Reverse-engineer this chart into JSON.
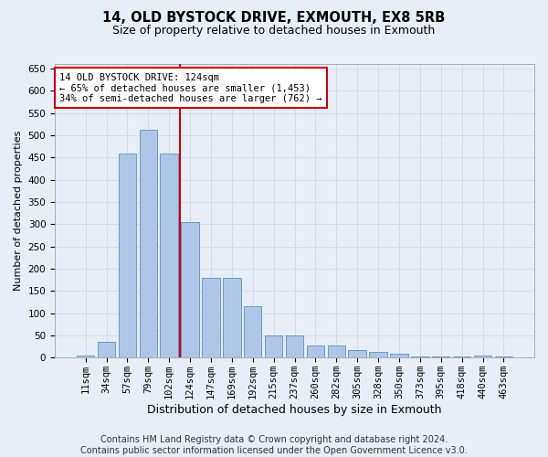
{
  "title_line1": "14, OLD BYSTOCK DRIVE, EXMOUTH, EX8 5RB",
  "title_line2": "Size of property relative to detached houses in Exmouth",
  "xlabel": "Distribution of detached houses by size in Exmouth",
  "ylabel": "Number of detached properties",
  "categories": [
    "11sqm",
    "34sqm",
    "57sqm",
    "79sqm",
    "102sqm",
    "124sqm",
    "147sqm",
    "169sqm",
    "192sqm",
    "215sqm",
    "237sqm",
    "260sqm",
    "282sqm",
    "305sqm",
    "328sqm",
    "350sqm",
    "373sqm",
    "395sqm",
    "418sqm",
    "440sqm",
    "463sqm"
  ],
  "values": [
    5,
    35,
    458,
    513,
    458,
    305,
    180,
    180,
    115,
    50,
    50,
    27,
    27,
    18,
    12,
    8,
    3,
    3,
    3,
    5,
    2
  ],
  "bar_color": "#aec6e8",
  "bar_edge_color": "#5a8fc2",
  "vline_x_index": 5,
  "vline_color": "#cc0000",
  "annotation_text": "14 OLD BYSTOCK DRIVE: 124sqm\n← 65% of detached houses are smaller (1,453)\n34% of semi-detached houses are larger (762) →",
  "annotation_box_color": "#ffffff",
  "annotation_box_edge": "#cc0000",
  "ylim": [
    0,
    660
  ],
  "yticks": [
    0,
    50,
    100,
    150,
    200,
    250,
    300,
    350,
    400,
    450,
    500,
    550,
    600,
    650
  ],
  "grid_color": "#d0d8e8",
  "bg_color": "#e8eef8",
  "footer_line1": "Contains HM Land Registry data © Crown copyright and database right 2024.",
  "footer_line2": "Contains public sector information licensed under the Open Government Licence v3.0.",
  "title_fontsize": 10.5,
  "subtitle_fontsize": 9,
  "xlabel_fontsize": 9,
  "ylabel_fontsize": 8,
  "tick_fontsize": 7.5,
  "footer_fontsize": 7,
  "ann_fontsize": 7.5
}
